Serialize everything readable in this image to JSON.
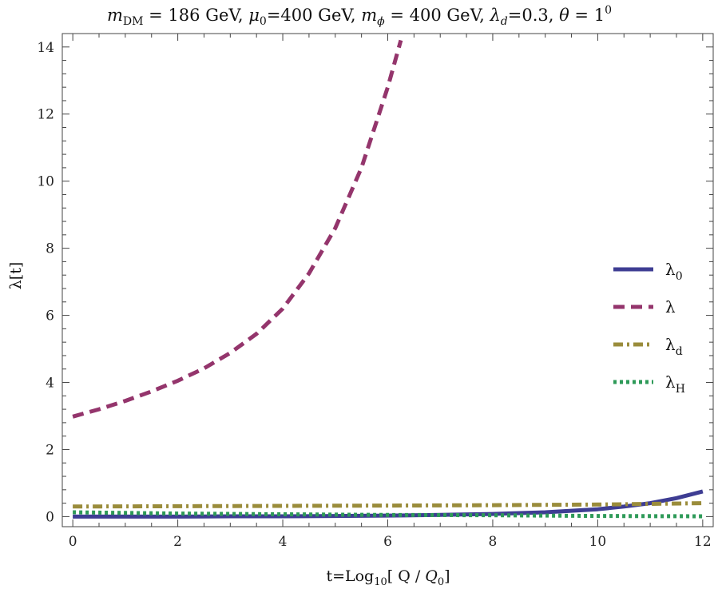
{
  "chart_data": {
    "type": "line",
    "title_parts": {
      "m_dm": "m",
      "m_dm_sub": "DM",
      "m_dm_value": " = 186 GeV, ",
      "mu": "μ",
      "mu_sub": "0",
      "mu_value": "=400 GeV, ",
      "m_phi": "m",
      "m_phi_sub": "ϕ",
      "m_phi_value": " = 400 GeV, ",
      "lambda": "λ",
      "lambda_sub": "d",
      "lambda_value": "=0.3, ",
      "theta": "θ",
      "theta_value": " = 1",
      "theta_sup": "0"
    },
    "xlabel_parts": {
      "pre": "t=Log",
      "sub": "10",
      "post": "[ Q / ",
      "q": "Q",
      "q_sub": "0",
      "end": "]"
    },
    "ylabel": "λ[t]",
    "xlim": [
      -0.2,
      12.2
    ],
    "ylim": [
      -0.3,
      14.4
    ],
    "xticks": [
      0,
      2,
      4,
      6,
      8,
      10,
      12
    ],
    "yticks": [
      0,
      2,
      4,
      6,
      8,
      10,
      12,
      14
    ],
    "grid": false,
    "legend_position": "right",
    "series": [
      {
        "name": "λ",
        "name_sub": "0",
        "color": "#3e3d93",
        "style": "solid",
        "x": [
          0,
          1,
          2,
          3,
          4,
          5,
          6,
          7,
          8,
          9,
          10,
          10.5,
          11,
          11.5,
          12
        ],
        "y": [
          0.0,
          0.0,
          0.0,
          0.01,
          0.01,
          0.02,
          0.03,
          0.05,
          0.08,
          0.13,
          0.22,
          0.3,
          0.4,
          0.55,
          0.75
        ]
      },
      {
        "name": "λ",
        "name_sub": "",
        "color": "#94356c",
        "style": "dashed",
        "x": [
          0,
          0.5,
          1,
          1.5,
          2,
          2.5,
          3,
          3.5,
          4,
          4.5,
          5,
          5.5,
          6,
          6.25
        ],
        "y": [
          2.98,
          3.2,
          3.45,
          3.73,
          4.05,
          4.42,
          4.88,
          5.45,
          6.2,
          7.25,
          8.6,
          10.4,
          12.8,
          14.2
        ]
      },
      {
        "name": "λ",
        "name_sub": "d",
        "color": "#9a8c3b",
        "style": "dashdot",
        "x": [
          0,
          2,
          4,
          6,
          8,
          10,
          11,
          12
        ],
        "y": [
          0.3,
          0.31,
          0.32,
          0.33,
          0.34,
          0.36,
          0.38,
          0.4
        ]
      },
      {
        "name": "λ",
        "name_sub": "H",
        "color": "#2e9a58",
        "style": "dotted",
        "x": [
          0,
          1,
          2,
          4,
          6,
          8,
          10,
          12
        ],
        "y": [
          0.13,
          0.11,
          0.09,
          0.07,
          0.05,
          0.04,
          0.02,
          0.01
        ]
      }
    ]
  }
}
